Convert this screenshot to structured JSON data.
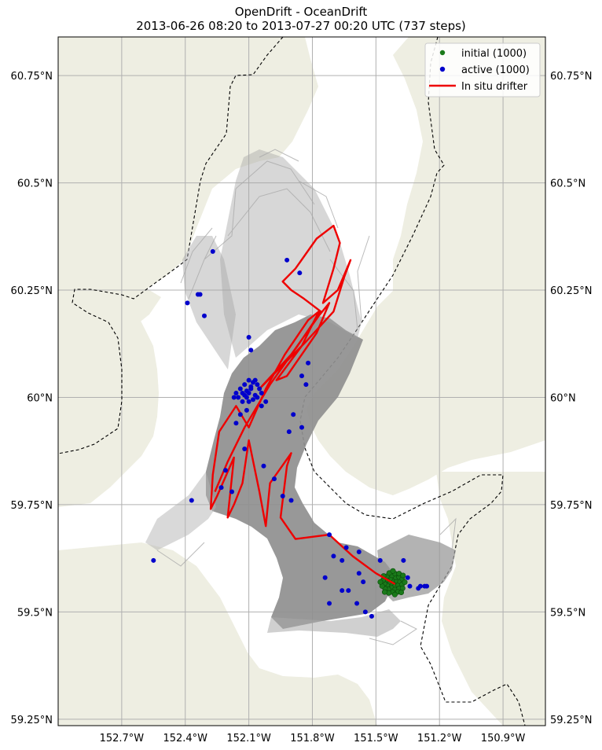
{
  "title": {
    "line1": "OpenDrift - OceanDrift",
    "line2": "2013-06-26 08:20 to 2013-07-27 00:20 UTC (737 steps)"
  },
  "map": {
    "lon_range": [
      -153.0,
      -150.7
    ],
    "lat_range": [
      59.235,
      60.84
    ],
    "lon_ticks": [
      {
        "value": -152.7,
        "label": "152.7°W"
      },
      {
        "value": -152.4,
        "label": "152.4°W"
      },
      {
        "value": -152.1,
        "label": "152.1°W"
      },
      {
        "value": -151.8,
        "label": "151.8°W"
      },
      {
        "value": -151.5,
        "label": "151.5°W"
      },
      {
        "value": -151.2,
        "label": "151.2°W"
      },
      {
        "value": -150.9,
        "label": "150.9°W"
      }
    ],
    "lat_ticks": [
      {
        "value": 60.75,
        "label": "60.75°N"
      },
      {
        "value": 60.5,
        "label": "60.5°N"
      },
      {
        "value": 60.25,
        "label": "60.25°N"
      },
      {
        "value": 60.0,
        "label": "60°N"
      },
      {
        "value": 59.75,
        "label": "59.75°N"
      },
      {
        "value": 59.5,
        "label": "59.5°N"
      },
      {
        "value": 59.25,
        "label": "59.25°N"
      }
    ],
    "grid": true,
    "colors": {
      "land": "#eeeee2",
      "ocean": "#ffffff",
      "grid": "#b0b0b0",
      "trajectory": "#8f8f8f",
      "initial": "#1a7a1a",
      "active": "#0000cc",
      "drifter": "#ee0000",
      "boundary": "#000000"
    }
  },
  "legend": {
    "placement": "top-right",
    "items": [
      {
        "label": "initial (1000)",
        "marker": "dot",
        "color": "#1a7a1a"
      },
      {
        "label": "active (1000)",
        "marker": "dot",
        "color": "#0000cc"
      },
      {
        "label": "In situ drifter",
        "marker": "line",
        "color": "#ee0000"
      }
    ]
  },
  "release_point": {
    "lon": -151.42,
    "lat": 59.567
  },
  "active_particles": [
    [
      -152.27,
      60.34
    ],
    [
      -151.92,
      60.32
    ],
    [
      -151.86,
      60.29
    ],
    [
      -152.39,
      60.22
    ],
    [
      -152.34,
      60.24
    ],
    [
      -152.33,
      60.24
    ],
    [
      -152.31,
      60.19
    ],
    [
      -152.1,
      60.14
    ],
    [
      -152.09,
      60.11
    ],
    [
      -151.82,
      60.08
    ],
    [
      -151.85,
      60.05
    ],
    [
      -151.83,
      60.03
    ],
    [
      -152.1,
      60.04
    ],
    [
      -152.09,
      60.02
    ],
    [
      -152.12,
      60.03
    ],
    [
      -152.14,
      60.02
    ],
    [
      -152.16,
      60.01
    ],
    [
      -152.15,
      60.0
    ],
    [
      -152.17,
      60.0
    ],
    [
      -152.13,
      59.99
    ],
    [
      -152.04,
      59.98
    ],
    [
      -152.11,
      59.97
    ],
    [
      -152.14,
      59.96
    ],
    [
      -151.89,
      59.96
    ],
    [
      -152.16,
      59.94
    ],
    [
      -151.91,
      59.92
    ],
    [
      -151.85,
      59.93
    ],
    [
      -152.12,
      59.88
    ],
    [
      -152.21,
      59.83
    ],
    [
      -151.98,
      59.81
    ],
    [
      -152.03,
      59.84
    ],
    [
      -152.23,
      59.79
    ],
    [
      -152.18,
      59.78
    ],
    [
      -152.37,
      59.76
    ],
    [
      -151.94,
      59.77
    ],
    [
      -151.9,
      59.76
    ],
    [
      -152.55,
      59.62
    ],
    [
      -151.72,
      59.68
    ],
    [
      -151.7,
      59.63
    ],
    [
      -151.64,
      59.65
    ],
    [
      -151.66,
      59.62
    ],
    [
      -151.58,
      59.64
    ],
    [
      -151.48,
      59.62
    ],
    [
      -151.37,
      59.62
    ],
    [
      -151.74,
      59.58
    ],
    [
      -151.58,
      59.59
    ],
    [
      -151.56,
      59.57
    ],
    [
      -151.66,
      59.55
    ],
    [
      -151.63,
      59.55
    ],
    [
      -151.35,
      59.58
    ],
    [
      -151.34,
      59.56
    ],
    [
      -151.3,
      59.555
    ],
    [
      -151.29,
      59.56
    ],
    [
      -151.27,
      59.56
    ],
    [
      -151.26,
      59.56
    ],
    [
      -151.72,
      59.52
    ],
    [
      -151.59,
      59.52
    ],
    [
      -151.55,
      59.5
    ],
    [
      -151.52,
      59.49
    ]
  ],
  "cluster_particles": [
    [
      -152.07,
      60.04
    ],
    [
      -152.06,
      60.03
    ],
    [
      -152.08,
      60.035
    ],
    [
      -152.05,
      60.02
    ],
    [
      -152.09,
      60.025
    ],
    [
      -152.1,
      60.01
    ],
    [
      -152.11,
      60.015
    ],
    [
      -152.07,
      60.005
    ],
    [
      -152.06,
      60.0
    ],
    [
      -152.08,
      59.995
    ],
    [
      -152.12,
      60.005
    ],
    [
      -152.13,
      60.01
    ],
    [
      -152.11,
      60.0
    ],
    [
      -152.04,
      60.01
    ],
    [
      -152.02,
      59.99
    ],
    [
      -152.1,
      59.99
    ]
  ],
  "drifter_path": [
    [
      -151.41,
      59.565
    ],
    [
      -151.5,
      59.59
    ],
    [
      -151.61,
      59.63
    ],
    [
      -151.72,
      59.68
    ],
    [
      -151.88,
      59.67
    ],
    [
      -151.95,
      59.72
    ],
    [
      -151.92,
      59.84
    ],
    [
      -151.9,
      59.87
    ],
    [
      -152.0,
      59.8
    ],
    [
      -152.02,
      59.7
    ],
    [
      -152.05,
      59.78
    ],
    [
      -152.1,
      59.9
    ],
    [
      -152.13,
      59.8
    ],
    [
      -152.17,
      59.75
    ],
    [
      -152.2,
      59.72
    ],
    [
      -152.17,
      59.86
    ],
    [
      -152.25,
      59.77
    ],
    [
      -152.28,
      59.74
    ],
    [
      -152.27,
      59.82
    ],
    [
      -152.24,
      59.92
    ],
    [
      -152.16,
      59.98
    ],
    [
      -152.1,
      59.93
    ],
    [
      -152.02,
      60.02
    ],
    [
      -151.93,
      60.1
    ],
    [
      -151.82,
      60.18
    ],
    [
      -151.77,
      60.2
    ],
    [
      -151.85,
      60.12
    ],
    [
      -151.97,
      60.04
    ],
    [
      -151.92,
      60.05
    ],
    [
      -151.78,
      60.15
    ],
    [
      -151.72,
      60.22
    ],
    [
      -151.77,
      60.19
    ],
    [
      -151.9,
      60.1
    ],
    [
      -152.05,
      60.02
    ],
    [
      -151.97,
      60.06
    ],
    [
      -151.83,
      60.13
    ],
    [
      -151.7,
      60.2
    ],
    [
      -151.65,
      60.28
    ],
    [
      -151.62,
      60.32
    ],
    [
      -151.68,
      60.25
    ],
    [
      -151.75,
      60.22
    ],
    [
      -151.7,
      60.3
    ],
    [
      -151.67,
      60.36
    ],
    [
      -151.7,
      60.4
    ],
    [
      -151.78,
      60.37
    ],
    [
      -151.88,
      60.3
    ],
    [
      -151.94,
      60.27
    ],
    [
      -151.9,
      60.25
    ],
    [
      -151.84,
      60.23
    ],
    [
      -151.76,
      60.2
    ],
    [
      -151.87,
      60.12
    ],
    [
      -152.0,
      60.03
    ],
    [
      -152.12,
      59.93
    ],
    [
      -152.2,
      59.85
    ],
    [
      -152.26,
      59.78
    ]
  ]
}
